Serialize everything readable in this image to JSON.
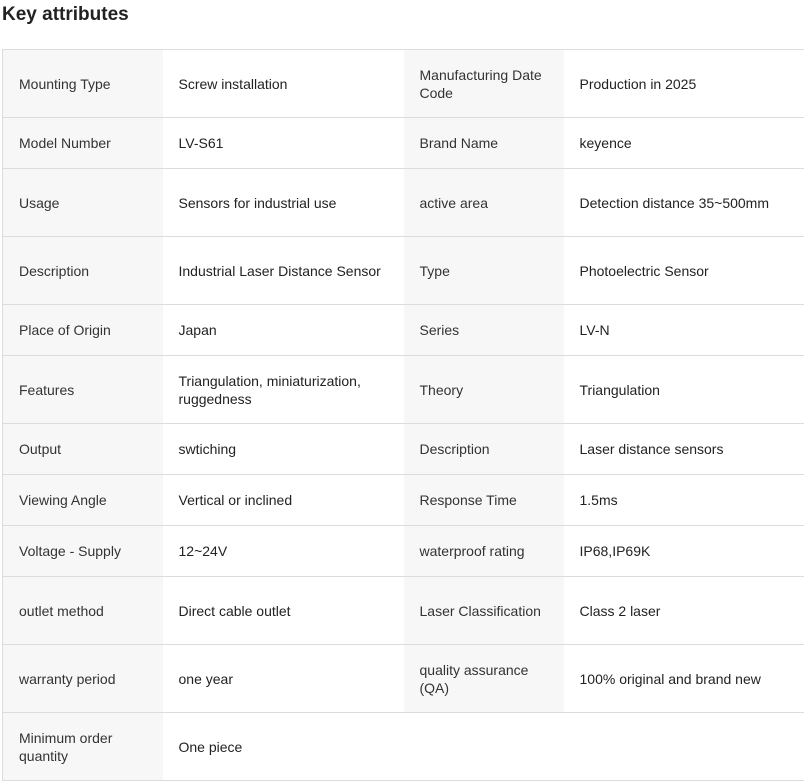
{
  "title": "Key attributes",
  "rows": [
    {
      "h": "r68",
      "k1": "Mounting Type",
      "v1": "Screw installation",
      "k2": "Manufacturing Date Code",
      "v2": "Production in 2025"
    },
    {
      "h": "r51",
      "k1": "Model Number",
      "v1": "LV-S61",
      "k2": "Brand Name",
      "v2": "keyence"
    },
    {
      "h": "r68",
      "k1": "Usage",
      "v1": "Sensors for industrial use",
      "k2": "active area",
      "v2": "Detection distance 35~500mm"
    },
    {
      "h": "r68",
      "k1": "Description",
      "v1": "Industrial Laser Distance Sensor",
      "k2": "Type",
      "v2": "Photoelectric Sensor"
    },
    {
      "h": "r51",
      "k1": "Place of Origin",
      "v1": "Japan",
      "k2": "Series",
      "v2": "LV-N"
    },
    {
      "h": "r68",
      "k1": "Features",
      "v1": "Triangulation, miniaturization, ruggedness",
      "k2": "Theory",
      "v2": "Triangulation"
    },
    {
      "h": "r51",
      "k1": "Output",
      "v1": "swtiching",
      "k2": "Description",
      "v2": "Laser distance sensors"
    },
    {
      "h": "r51",
      "k1": "Viewing Angle",
      "v1": "Vertical or inclined",
      "k2": "Response Time",
      "v2": "1.5ms"
    },
    {
      "h": "r51",
      "k1": "Voltage - Supply",
      "v1": "12~24V",
      "k2": "waterproof rating",
      "v2": "IP68,IP69K"
    },
    {
      "h": "r68",
      "k1": "outlet method",
      "v1": "Direct cable outlet",
      "k2": "Laser Classification",
      "v2": "Class 2 laser"
    },
    {
      "h": "r68",
      "k1": "warranty period",
      "v1": "one year",
      "k2": "quality assurance (QA)",
      "v2": "100% original and brand new"
    },
    {
      "h": "r68",
      "k1": "Minimum order quantity",
      "v1": "One piece"
    }
  ]
}
